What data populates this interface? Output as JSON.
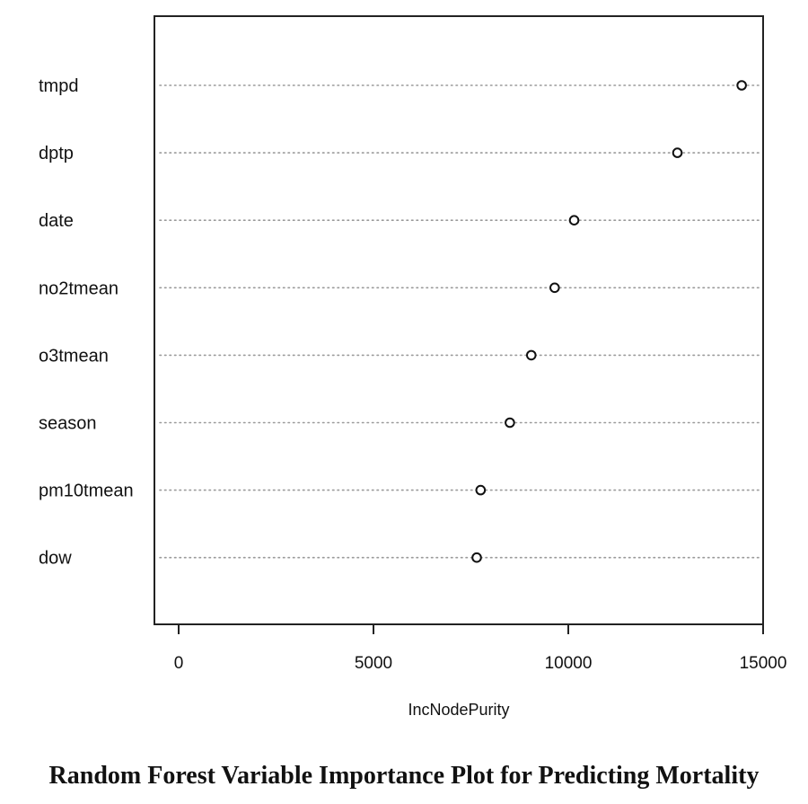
{
  "chart_data": {
    "type": "scatter",
    "variables": [
      "tmpd",
      "dptp",
      "date",
      "no2tmean",
      "o3tmean",
      "season",
      "pm10tmean",
      "dow"
    ],
    "values": [
      14450,
      12800,
      10150,
      9650,
      9050,
      8500,
      7750,
      7650
    ],
    "xlabel": "IncNodePurity",
    "xticks": [
      0,
      5000,
      10000,
      15000
    ],
    "xtick_labels": [
      "0",
      "5000",
      "10000",
      "15000"
    ],
    "xlim": [
      0,
      15000
    ],
    "grid": "dotted horizontal guide lines per variable"
  },
  "caption": "Random Forest Variable Importance Plot for Predicting Mortality"
}
